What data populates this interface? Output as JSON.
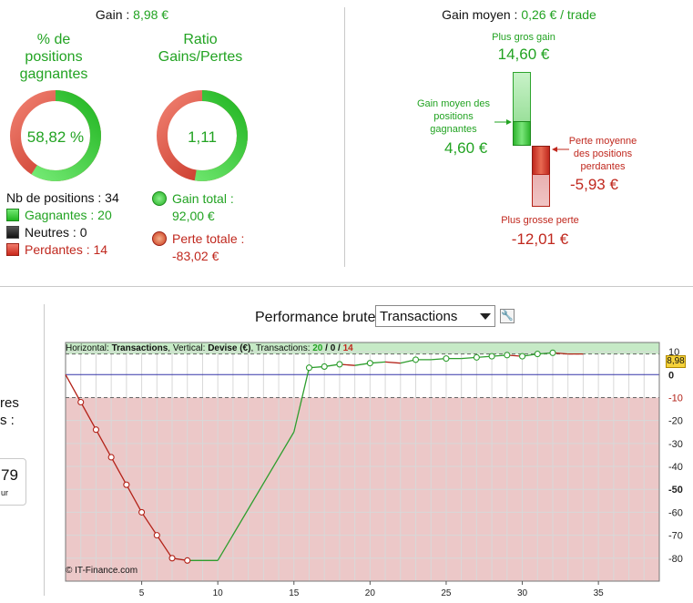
{
  "summary": {
    "gain_label": "Gain : ",
    "gain_value": "8,98 €",
    "pct_title_lines": [
      "% de",
      "positions",
      "gagnantes"
    ],
    "pct_value": "58,82 %",
    "pct_fraction": 0.5882,
    "ratio_title_lines": [
      "Ratio",
      "Gains/Pertes"
    ],
    "ratio_value": "1,11",
    "ratio_fraction": 0.5257,
    "nb_positions": "Nb de positions : 34",
    "gagnantes": "Gagnantes : 20",
    "neutres": "Neutres : 0",
    "perdantes": "Perdantes : 14",
    "gain_total_label": "Gain total :",
    "gain_total_value": "92,00 €",
    "perte_totale_label": "Perte totale :",
    "perte_totale_value": "-83,02 €"
  },
  "gain_moyen": {
    "label": "Gain moyen : ",
    "value": "0,26 € / trade",
    "plus_gros_gain_label": "Plus gros gain",
    "plus_gros_gain_value": "14,60 €",
    "gain_moyen_pos_lines": [
      "Gain moyen des",
      "positions",
      "gagnantes"
    ],
    "gain_moyen_pos_value": "4,60 €",
    "perte_moyenne_lines": [
      "Perte moyenne",
      "des positions",
      "perdantes"
    ],
    "perte_moyenne_value": "-5,93 €",
    "plus_grosse_perte_label": "Plus grosse perte",
    "plus_grosse_perte_value": "-12,01 €"
  },
  "left_cut": {
    "line1": "res",
    "line2": "s :",
    "box_value": "79",
    "box_sub": "ur"
  },
  "performance": {
    "title": "Performance brute",
    "select_value": "Transactions",
    "info_prefix": "Horizontal: ",
    "info_h": "Transactions",
    "info_mid": ", Vertical: ",
    "info_v": "Devise (€)",
    "info_tx": ", Transactions: ",
    "info_win": "20",
    "info_sep1": " / ",
    "info_neu": "0",
    "info_sep2": " / ",
    "info_loss": "14",
    "copyright": "© IT-Finance.com",
    "last_value_badge": "8,98"
  },
  "chart_data": {
    "type": "line",
    "xlim": [
      0,
      39
    ],
    "ylim": [
      -90,
      14
    ],
    "x_ticks": [
      5,
      10,
      15,
      20,
      25,
      30,
      35
    ],
    "y_ticks": [
      10,
      0,
      -10,
      -20,
      -30,
      -40,
      -50,
      -60,
      -70,
      -80
    ],
    "y_tick_labels": [
      "10",
      "0",
      "-10",
      "-20",
      "-30",
      "-40",
      "-50",
      "-60",
      "-70",
      "-80"
    ],
    "y_bold_ticks": [
      0,
      -50
    ],
    "green_zone_top": 9,
    "red_zone_top": -10,
    "colors": {
      "gain": "#2e9e2e",
      "loss": "#b32218",
      "zero_line": "#3535a8",
      "green_zone": "#c6eac6",
      "red_zone": "#ecc8c8"
    },
    "points": [
      [
        0,
        0
      ],
      [
        1,
        -12
      ],
      [
        2,
        -24
      ],
      [
        3,
        -36
      ],
      [
        4,
        -48
      ],
      [
        5,
        -60
      ],
      [
        6,
        -70
      ],
      [
        7,
        -80
      ],
      [
        8,
        -81
      ],
      [
        10,
        -81
      ],
      [
        15,
        -25
      ],
      [
        16,
        3
      ],
      [
        17,
        3.5
      ],
      [
        18,
        4.5
      ],
      [
        19,
        4
      ],
      [
        20,
        5
      ],
      [
        21,
        5.5
      ],
      [
        22,
        5
      ],
      [
        23,
        6.5
      ],
      [
        24,
        6.5
      ],
      [
        25,
        7
      ],
      [
        26,
        7
      ],
      [
        27,
        7.5
      ],
      [
        28,
        8
      ],
      [
        29,
        8.5
      ],
      [
        30,
        8
      ],
      [
        31,
        9
      ],
      [
        32,
        9.5
      ],
      [
        33,
        9
      ],
      [
        34,
        8.98
      ]
    ],
    "markers": [
      1,
      2,
      3,
      4,
      5,
      6,
      7,
      8,
      16,
      17,
      18,
      20,
      23,
      25,
      27,
      28,
      29,
      30,
      31,
      32
    ]
  }
}
